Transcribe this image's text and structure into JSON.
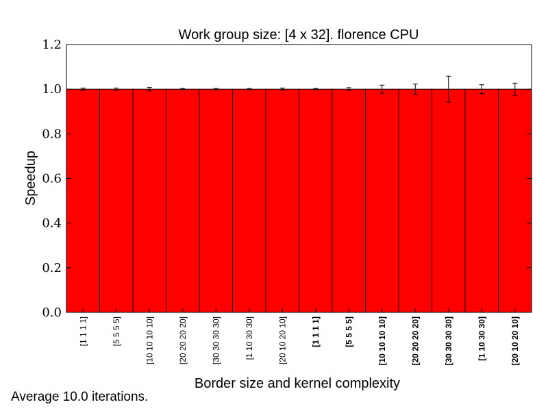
{
  "chart_data": {
    "type": "bar",
    "title": "Work group size: [4 x 32]. florence CPU",
    "xlabel": "Border size and kernel complexity",
    "ylabel": "Speedup",
    "ylim": [
      0,
      1.2
    ],
    "yticks": [
      "0.0",
      "0.2",
      "0.4",
      "0.6",
      "0.8",
      "1.0",
      "1.2"
    ],
    "grid": false,
    "bar_color": "#ff0000",
    "categories": [
      "[1 1 1 1]",
      "[5 5 5 5]",
      "[10 10 10 10]",
      "[20 20 20 20]",
      "[30 30 30 30]",
      "[1 10 30 30]",
      "[20 10 20 10]",
      "[1 1 1 1]",
      "[5 5 5 5]",
      "[10 10 10 10]",
      "[20 20 20 20]",
      "[30 30 30 30]",
      "[1 10 30 30]",
      "[20 10 20 10]"
    ],
    "bold_categories": [
      false,
      false,
      false,
      false,
      false,
      false,
      false,
      true,
      true,
      true,
      true,
      true,
      true,
      true
    ],
    "values": [
      1.0,
      1.0,
      1.0,
      1.0,
      1.0,
      1.0,
      1.0,
      1.0,
      1.0,
      1.0,
      1.0,
      1.0,
      1.0,
      1.0
    ],
    "errors": [
      0.005,
      0.005,
      0.008,
      0.003,
      0.003,
      0.003,
      0.005,
      0.003,
      0.007,
      0.018,
      0.023,
      0.058,
      0.02,
      0.027
    ]
  },
  "footnote": "Average 10.0 iterations."
}
